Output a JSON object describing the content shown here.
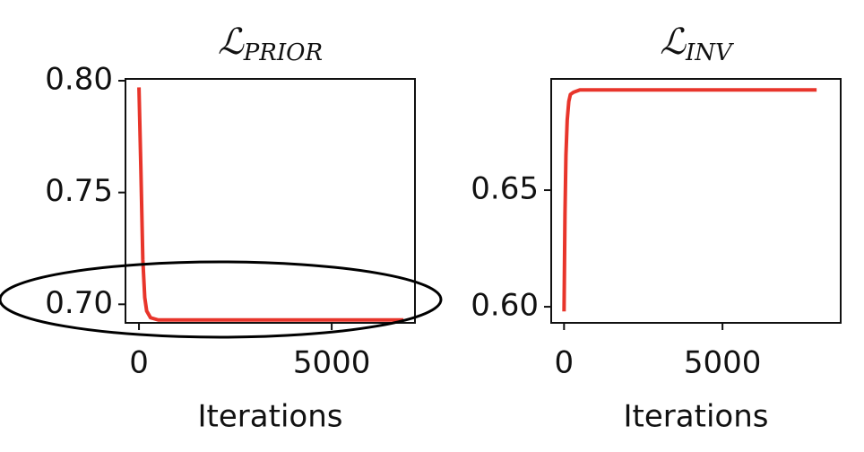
{
  "chart_data": [
    {
      "type": "line",
      "title": "ℒ",
      "title_subscript": "PRIOR",
      "xlabel": "Iterations",
      "x": [
        0,
        50,
        100,
        150,
        200,
        300,
        500,
        1000,
        3000,
        6860
      ],
      "series": [
        {
          "color": "#e8352b",
          "values": [
            0.797,
            0.76,
            0.72,
            0.703,
            0.697,
            0.694,
            0.693,
            0.693,
            0.693,
            0.693
          ]
        }
      ],
      "xlim": [
        -350,
        7160
      ],
      "xticks": [
        0,
        5000
      ],
      "ylim": [
        0.6917,
        0.8008
      ],
      "yticks": [
        {
          "value": 0.7,
          "label": "0.70"
        },
        0.75,
        {
          "value": 0.8,
          "label": "0.80"
        }
      ]
    },
    {
      "type": "line",
      "title": "ℒ",
      "title_subscript": "INV",
      "xlabel": "Iterations",
      "x": [
        0,
        30,
        60,
        100,
        150,
        200,
        300,
        500,
        1000,
        3000,
        7970
      ],
      "series": [
        {
          "color": "#e8352b",
          "values": [
            0.598,
            0.64,
            0.665,
            0.68,
            0.688,
            0.691,
            0.692,
            0.693,
            0.693,
            0.693,
            0.693
          ]
        }
      ],
      "xlim": [
        -405,
        8730
      ],
      "xticks": [
        0,
        5000
      ],
      "ylim": [
        0.5931,
        0.6977
      ],
      "yticks": [
        {
          "value": 0.6,
          "label": "0.60"
        },
        0.65
      ]
    }
  ]
}
